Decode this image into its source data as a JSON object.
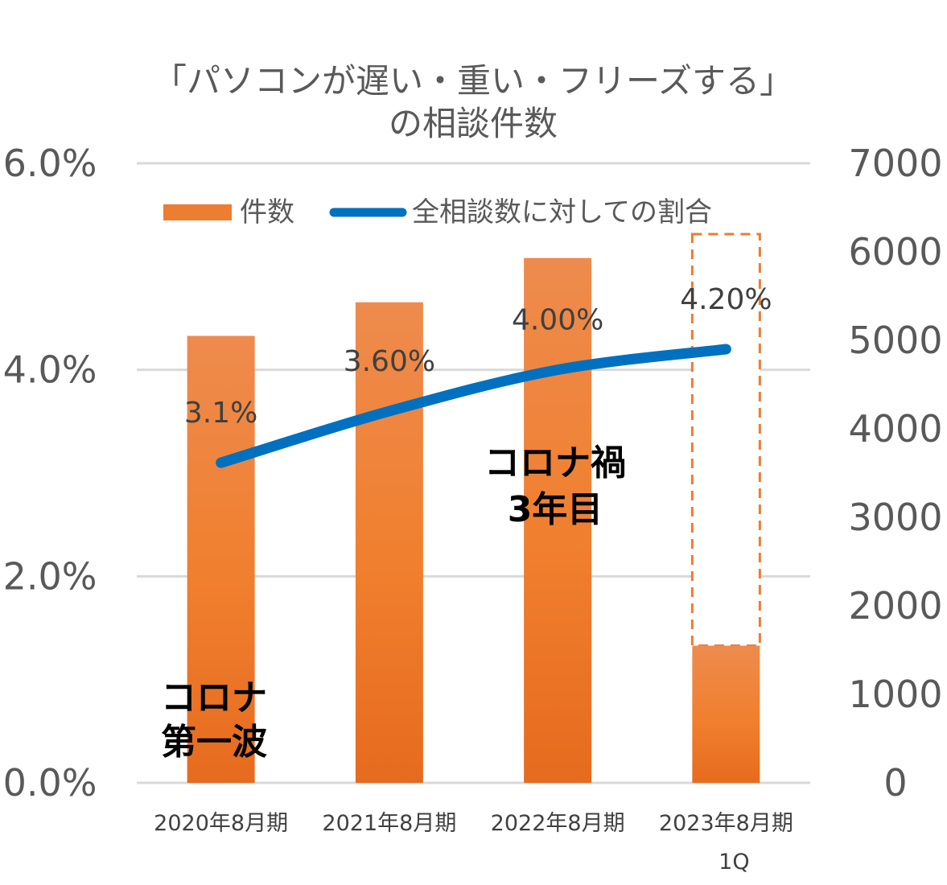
{
  "chart_data": {
    "type": "bar+line",
    "title": [
      "「パソコンが遅い・重い・フリーズする」",
      "の相談件数"
    ],
    "categories": [
      "2020年8月期",
      "2021年8月期",
      "2022年8月期",
      "2023年8月期"
    ],
    "category_sublabels": [
      "",
      "",
      "",
      "1Q"
    ],
    "bar_series": {
      "name": "件数",
      "axis": "right",
      "values": [
        5050,
        5430,
        5930,
        1550
      ],
      "projected_values": [
        null,
        null,
        null,
        6200
      ],
      "color": "#ED7D31"
    },
    "line_series": {
      "name": "全相談数に対しての割合",
      "axis": "left",
      "values": [
        3.1,
        3.6,
        4.0,
        4.2
      ],
      "data_labels": [
        "3.1%",
        "3.60%",
        "4.00%",
        "4.20%"
      ],
      "color": "#0070C0"
    },
    "y_left": {
      "ticks": [
        "0.0%",
        "2.0%",
        "4.0%",
        "6.0%"
      ],
      "min": 0,
      "max": 6
    },
    "y_right": {
      "ticks": [
        "0",
        "1000",
        "2000",
        "3000",
        "4000",
        "5000",
        "6000",
        "7000"
      ],
      "min": 0,
      "max": 7000
    },
    "grid": true,
    "legend_position": "top",
    "annotations": [
      {
        "lines": [
          "コロナ",
          "第一波"
        ],
        "near_category": "2020年8月期"
      },
      {
        "lines": [
          "コロナ禍",
          "3年目"
        ],
        "near_category": "2022年8月期"
      }
    ]
  }
}
